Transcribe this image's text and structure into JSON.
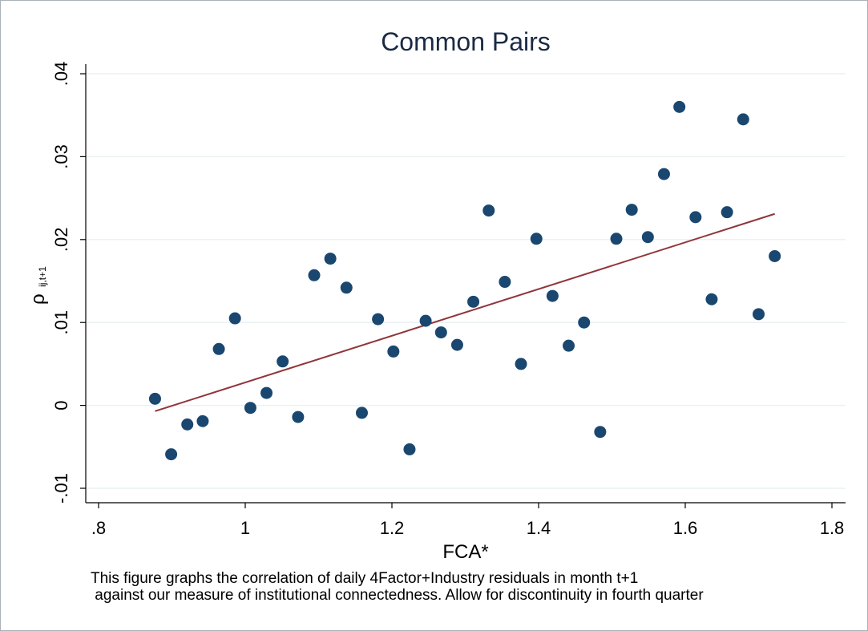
{
  "chart_data": {
    "type": "scatter",
    "title": "Common Pairs",
    "xlabel": "FCA*",
    "ylabel": "ρ",
    "ylabel_subscript": "ij,t+1",
    "xlim": [
      0.8,
      1.8
    ],
    "ylim": [
      -0.01,
      0.04
    ],
    "x_ticks": [
      0.8,
      1.0,
      1.2,
      1.4,
      1.6,
      1.8
    ],
    "x_tick_labels": [
      ".8",
      "1",
      "1.2",
      "1.4",
      "1.6",
      "1.8"
    ],
    "y_ticks": [
      -0.01,
      0,
      0.01,
      0.02,
      0.03,
      0.04
    ],
    "y_tick_labels": [
      "-.01",
      "0",
      ".01",
      ".02",
      ".03",
      ".04"
    ],
    "grid": true,
    "series": [
      {
        "x": [
          0.877,
          0.899,
          0.921,
          0.942,
          0.964,
          0.986,
          1.007,
          1.029,
          1.051,
          1.072,
          1.094,
          1.116,
          1.138,
          1.159,
          1.181,
          1.202,
          1.224,
          1.246,
          1.267,
          1.289,
          1.311,
          1.332,
          1.354,
          1.376,
          1.397,
          1.419,
          1.441,
          1.462,
          1.484,
          1.506,
          1.527,
          1.549,
          1.571,
          1.592,
          1.614,
          1.636,
          1.657,
          1.679,
          1.7,
          1.722
        ],
        "y": [
          0.0008,
          -0.0059,
          -0.0023,
          -0.0019,
          0.0068,
          0.0105,
          -0.0003,
          0.0015,
          0.0053,
          -0.0014,
          0.0157,
          0.0177,
          0.0142,
          -0.0009,
          0.0104,
          0.0065,
          -0.0053,
          0.0102,
          0.0088,
          0.0073,
          0.0125,
          0.0235,
          0.0149,
          0.005,
          0.0201,
          0.0132,
          0.0072,
          0.01,
          -0.0032,
          0.0201,
          0.0236,
          0.0203,
          0.0279,
          0.036,
          0.0227,
          0.0128,
          0.0233,
          0.0345,
          0.011,
          0.018
        ]
      }
    ],
    "fit_line": {
      "x": [
        0.877,
        1.722
      ],
      "y": [
        -0.0007,
        0.0231
      ]
    },
    "colors": {
      "points": "#1a476f",
      "fit": "#90353b",
      "grid": "#eaf2f3",
      "title": "#1a2a44"
    }
  },
  "note": {
    "line1": "This figure graphs the correlation of daily 4Factor+Industry residuals in month t+1",
    "line2": " against our measure of institutional connectedness. Allow for discontinuity in fourth quarter"
  }
}
